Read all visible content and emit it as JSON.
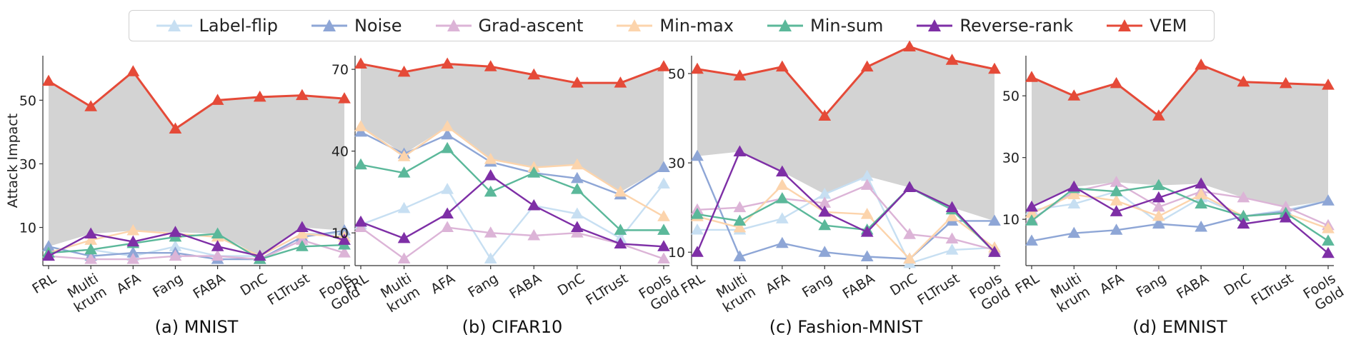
{
  "legend": [
    {
      "name": "Label-flip",
      "color": "#c7dff2"
    },
    {
      "name": "Noise",
      "color": "#8ea6d6"
    },
    {
      "name": "Grad-ascent",
      "color": "#dcb4d7"
    },
    {
      "name": "Min-max",
      "color": "#fcd4ac"
    },
    {
      "name": "Min-sum",
      "color": "#5bb89a"
    },
    {
      "name": "Reverse-rank",
      "color": "#7e2fa6"
    },
    {
      "name": "VEM",
      "color": "#e54a38"
    }
  ],
  "colors": {
    "Label-flip": "#c7dff2",
    "Noise": "#8ea6d6",
    "Grad-ascent": "#dcb4d7",
    "Min-max": "#fcd4ac",
    "Min-sum": "#5bb89a",
    "Reverse-rank": "#7e2fa6",
    "VEM": "#e54a38",
    "fill": "#d3d3d3",
    "axis": "#333333"
  },
  "marker_icon": "triangle-up",
  "chart_data": [
    {
      "type": "line",
      "caption": "(a) MNIST",
      "ylabel": "Attack Impact",
      "categories": [
        "FRL",
        "Multi krum",
        "AFA",
        "Fang",
        "FABA",
        "DnC",
        "FLTrust",
        "Fools Gold"
      ],
      "category_lines": [
        [
          "FRL"
        ],
        [
          "Multi",
          "krum"
        ],
        [
          "AFA"
        ],
        [
          "Fang"
        ],
        [
          "FABA"
        ],
        [
          "DnC"
        ],
        [
          "FLTrust"
        ],
        [
          "Fools",
          "Gold"
        ]
      ],
      "yticks": [
        10,
        30,
        50
      ],
      "ylim": [
        -2,
        64
      ],
      "series": [
        {
          "name": "Label-flip",
          "values": [
            2,
            3,
            1,
            4,
            1,
            1,
            8,
            8
          ]
        },
        {
          "name": "Noise",
          "values": [
            4,
            1,
            2,
            2,
            0,
            0,
            7,
            9
          ]
        },
        {
          "name": "Grad-ascent",
          "values": [
            1,
            0,
            0,
            1,
            1,
            0,
            6,
            2
          ]
        },
        {
          "name": "Min-max",
          "values": [
            2,
            6,
            9,
            8,
            7,
            1,
            8,
            7
          ]
        },
        {
          "name": "Min-sum",
          "values": [
            2,
            3,
            5,
            7,
            8,
            0,
            4,
            4.5
          ]
        },
        {
          "name": "Reverse-rank",
          "values": [
            1,
            8,
            5.5,
            8.5,
            4,
            1,
            10,
            6
          ]
        },
        {
          "name": "VEM",
          "values": [
            56,
            48,
            59,
            41,
            50,
            51,
            51.5,
            50.5
          ]
        }
      ]
    },
    {
      "type": "line",
      "caption": "(b) CIFAR10",
      "ylabel": "",
      "categories": [
        "FRL",
        "Multi krum",
        "AFA",
        "Fang",
        "FABA",
        "DnC",
        "FLTrust",
        "Fools Gold"
      ],
      "category_lines": [
        [
          "FRL"
        ],
        [
          "Multi",
          "krum"
        ],
        [
          "AFA"
        ],
        [
          "Fang"
        ],
        [
          "FABA"
        ],
        [
          "DnC"
        ],
        [
          "FLTrust"
        ],
        [
          "Fools",
          "Gold"
        ]
      ],
      "yticks": [
        10,
        40,
        70
      ],
      "ylim": [
        -2,
        75
      ],
      "series": [
        {
          "name": "Label-flip",
          "values": [
            13,
            19,
            26,
            0.5,
            20,
            17,
            8,
            28
          ]
        },
        {
          "name": "Noise",
          "values": [
            47,
            39,
            46,
            36,
            32,
            30,
            24,
            34
          ]
        },
        {
          "name": "Grad-ascent",
          "values": [
            12,
            0.5,
            12,
            10,
            9,
            10,
            6,
            0.5
          ]
        },
        {
          "name": "Min-max",
          "values": [
            49,
            38,
            49,
            37,
            34,
            35,
            25,
            16
          ]
        },
        {
          "name": "Min-sum",
          "values": [
            35,
            32,
            41,
            25,
            32,
            26,
            11,
            11
          ]
        },
        {
          "name": "Reverse-rank",
          "values": [
            14,
            8,
            17,
            31,
            20,
            12,
            6,
            5
          ]
        },
        {
          "name": "VEM",
          "values": [
            72,
            69,
            72,
            71,
            68,
            65,
            65,
            71
          ]
        }
      ]
    },
    {
      "type": "line",
      "caption": "(c) Fashion-MNIST",
      "ylabel": "",
      "categories": [
        "FRL",
        "Multi krum",
        "AFA",
        "Fang",
        "FABA",
        "DnC",
        "FLTrust",
        "Fools Gold"
      ],
      "category_lines": [
        [
          "FRL"
        ],
        [
          "Multi",
          "krum"
        ],
        [
          "AFA"
        ],
        [
          "Fang"
        ],
        [
          "FABA"
        ],
        [
          "DnC"
        ],
        [
          "FLTrust"
        ],
        [
          "Fools",
          "Gold"
        ]
      ],
      "yticks": [
        10,
        30,
        50
      ],
      "ylim": [
        7,
        54
      ],
      "series": [
        {
          "name": "Label-flip",
          "values": [
            15,
            15,
            17.5,
            23,
            27,
            7.5,
            10.5,
            11
          ]
        },
        {
          "name": "Noise",
          "values": [
            31.5,
            9,
            12,
            10,
            9,
            8.5,
            17,
            17
          ]
        },
        {
          "name": "Grad-ascent",
          "values": [
            19.5,
            20,
            22,
            21,
            25,
            14,
            13,
            10.5
          ]
        },
        {
          "name": "Min-max",
          "values": [
            18,
            15.5,
            25,
            19,
            18.5,
            8.5,
            18,
            11
          ]
        },
        {
          "name": "Min-sum",
          "values": [
            18.5,
            17,
            22,
            16,
            15,
            24.5,
            19.5,
            10
          ]
        },
        {
          "name": "Reverse-rank",
          "values": [
            10,
            32.5,
            28,
            19,
            14.5,
            24.5,
            20,
            10
          ]
        },
        {
          "name": "VEM",
          "values": [
            51,
            49.5,
            51.5,
            40.5,
            51.5,
            56,
            53,
            51
          ]
        }
      ]
    },
    {
      "type": "line",
      "caption": "(d) EMNIST",
      "ylabel": "",
      "categories": [
        "FRL",
        "Multi krum",
        "AFA",
        "Fang",
        "FABA",
        "DnC",
        "FLTrust",
        "Fools Gold"
      ],
      "category_lines": [
        [
          "FRL"
        ],
        [
          "Multi",
          "krum"
        ],
        [
          "AFA"
        ],
        [
          "Fang"
        ],
        [
          "FABA"
        ],
        [
          "DnC"
        ],
        [
          "FLTrust"
        ],
        [
          "Fools",
          "Gold"
        ]
      ],
      "yticks": [
        10,
        30,
        50
      ],
      "ylim": [
        -5,
        63
      ],
      "series": [
        {
          "name": "Label-flip",
          "values": [
            13,
            15,
            19,
            9,
            17,
            11,
            13,
            16
          ]
        },
        {
          "name": "Noise",
          "values": [
            3,
            5.5,
            6.5,
            8.5,
            7.5,
            11,
            12.5,
            16
          ]
        },
        {
          "name": "Grad-ascent",
          "values": [
            10,
            19,
            22,
            14,
            19,
            17,
            14,
            8
          ]
        },
        {
          "name": "Min-max",
          "values": [
            12,
            18,
            16,
            11,
            18,
            11,
            12,
            7
          ]
        },
        {
          "name": "Min-sum",
          "values": [
            9.5,
            20,
            19,
            21,
            15,
            11,
            12,
            3
          ]
        },
        {
          "name": "Reverse-rank",
          "values": [
            14,
            20.5,
            12.5,
            17,
            21.5,
            8.5,
            10.5,
            -1
          ]
        },
        {
          "name": "VEM",
          "values": [
            56,
            50,
            54,
            43.5,
            60,
            54.5,
            54,
            53.5
          ]
        }
      ]
    }
  ]
}
